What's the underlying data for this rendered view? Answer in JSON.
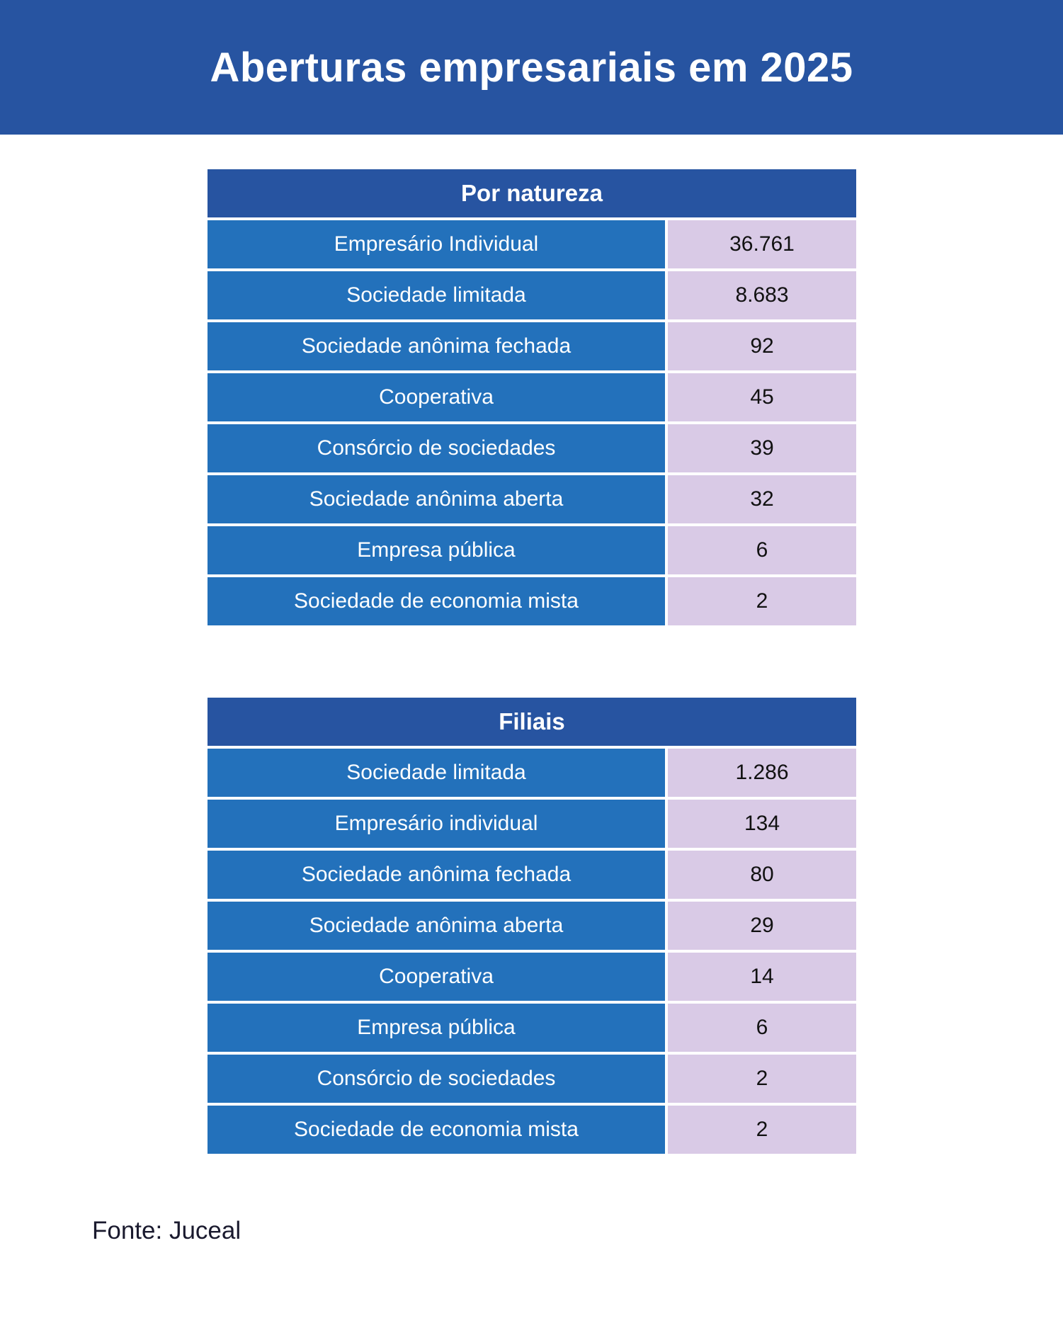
{
  "chart_data": {
    "type": "table",
    "title": "Aberturas empresariais em 2025",
    "tables": [
      {
        "header": "Por natureza",
        "rows": [
          {
            "label": "Empresário Individual",
            "value": "36.761"
          },
          {
            "label": "Sociedade limitada",
            "value": "8.683"
          },
          {
            "label": "Sociedade anônima fechada",
            "value": "92"
          },
          {
            "label": "Cooperativa",
            "value": "45"
          },
          {
            "label": "Consórcio de sociedades",
            "value": "39"
          },
          {
            "label": "Sociedade anônima aberta",
            "value": "32"
          },
          {
            "label": "Empresa pública",
            "value": "6"
          },
          {
            "label": "Sociedade de economia mista",
            "value": "2"
          }
        ]
      },
      {
        "header": "Filiais",
        "rows": [
          {
            "label": "Sociedade limitada",
            "value": "1.286"
          },
          {
            "label": "Empresário individual",
            "value": "134"
          },
          {
            "label": "Sociedade anônima fechada",
            "value": "80"
          },
          {
            "label": "Sociedade anônima aberta",
            "value": "29"
          },
          {
            "label": "Cooperativa",
            "value": "14"
          },
          {
            "label": "Empresa pública",
            "value": "6"
          },
          {
            "label": "Consórcio de sociedades",
            "value": "2"
          },
          {
            "label": "Sociedade de economia mista",
            "value": "2"
          }
        ]
      }
    ],
    "source": "Fonte: Juceal"
  },
  "colors": {
    "banner": "#2754a1",
    "header": "#2754a1",
    "label_cell": "#2371bb",
    "value_cell": "#d9cae6"
  }
}
